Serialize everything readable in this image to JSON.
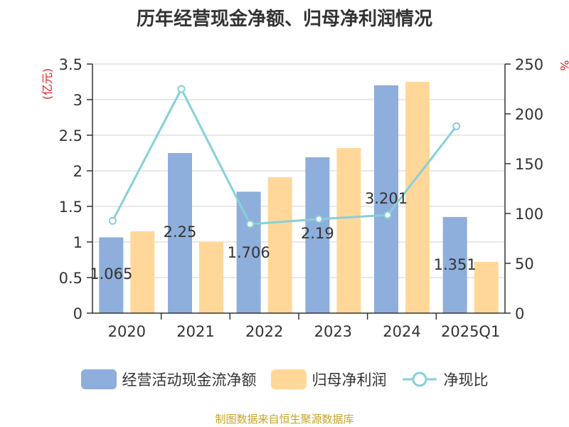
{
  "chart_data": {
    "type": "bar",
    "title": "历年经营现金净额、归母净利润情况",
    "categories": [
      "2020",
      "2021",
      "2022",
      "2023",
      "2024",
      "2025Q1"
    ],
    "y_left": {
      "label": "(亿元)",
      "min": 0,
      "max": 3.5,
      "ticks": [
        "0",
        "0.5",
        "1",
        "1.5",
        "2",
        "2.5",
        "3",
        "3.5"
      ]
    },
    "y_right": {
      "label": "%",
      "min": 0,
      "max": 250,
      "ticks": [
        "0",
        "50",
        "100",
        "150",
        "200",
        "250"
      ]
    },
    "series": [
      {
        "name": "经营活动现金流净额",
        "kind": "bar",
        "axis": "left",
        "color": "#8eaedb",
        "values": [
          1.065,
          2.25,
          1.706,
          2.19,
          3.201,
          1.351
        ],
        "labels": [
          "1.065",
          "2.25",
          "1.706",
          "2.19",
          "3.201",
          "1.351"
        ]
      },
      {
        "name": "归母净利润",
        "kind": "bar",
        "axis": "left",
        "color": "#ffd899",
        "values": [
          1.15,
          1.0,
          1.91,
          2.32,
          3.25,
          0.72
        ]
      },
      {
        "name": "净现比",
        "kind": "line",
        "axis": "right",
        "color": "#86d0d8",
        "values": [
          92.6,
          225,
          89.3,
          94.4,
          98.5,
          187.6
        ]
      }
    ],
    "grid": true,
    "legend_position": "bottom"
  },
  "source_note": "制图数据来自恒生聚源数据库"
}
